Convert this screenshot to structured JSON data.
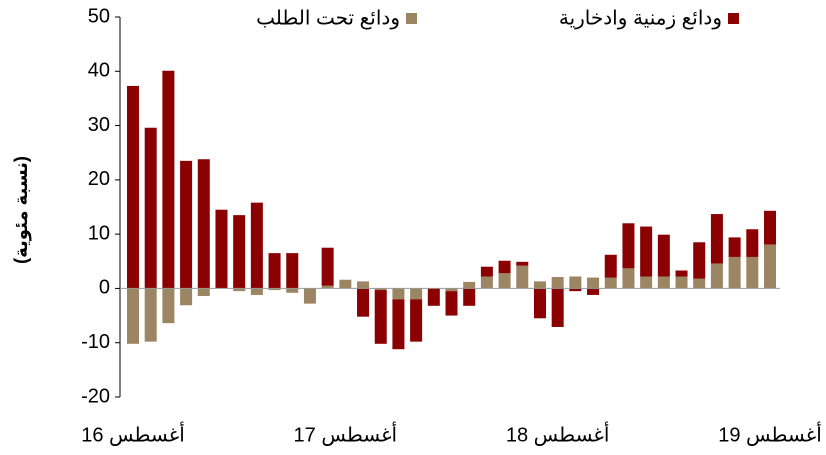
{
  "chart_data": {
    "type": "stacked-bar",
    "y_label": "(نسبة مئوية)",
    "categories": [
      "أغسطس 16",
      null,
      null,
      null,
      null,
      null,
      null,
      null,
      null,
      null,
      null,
      null,
      "أغسطس 17",
      null,
      null,
      null,
      null,
      null,
      null,
      null,
      null,
      null,
      null,
      null,
      "أغسطس 18",
      null,
      null,
      null,
      null,
      null,
      null,
      null,
      null,
      null,
      null,
      null,
      "أغسطس 19"
    ],
    "series": [
      {
        "name": "ودائع تحت الطلب",
        "color": "#9c8563",
        "values": [
          -10.2,
          -9.8,
          -6.4,
          -3.1,
          -1.4,
          0,
          -0.5,
          -1.2,
          -0.3,
          -0.8,
          -2.8,
          0.5,
          1.6,
          1.3,
          -0.3,
          -2,
          -2,
          0,
          -0.5,
          1.2,
          2.2,
          2.8,
          4.2,
          1.3,
          2.1,
          2.2,
          2,
          2,
          3.7,
          2.2,
          2.2,
          2.2,
          1.8,
          4.6,
          5.8,
          5.8,
          8.1
        ]
      },
      {
        "name": "ودائع زمنية وادخارية",
        "color": "#8b0000",
        "values": [
          37.3,
          29.6,
          40.1,
          23.5,
          23.8,
          14.5,
          13.5,
          15.8,
          6.5,
          6.5,
          0,
          7,
          0,
          -5.2,
          -9.9,
          -9.2,
          -7.8,
          -3.2,
          -4.5,
          -3.2,
          1.8,
          2.3,
          0.7,
          -5.5,
          -7.1,
          -0.5,
          -1.2,
          4.2,
          8.3,
          9.2,
          7.7,
          1.1,
          6.7,
          9.1,
          3.6,
          5.1,
          6.2
        ]
      }
    ],
    "ylim": [
      -20,
      50
    ],
    "yticks": [
      -20,
      -10,
      0,
      10,
      20,
      30,
      40,
      50
    ]
  }
}
